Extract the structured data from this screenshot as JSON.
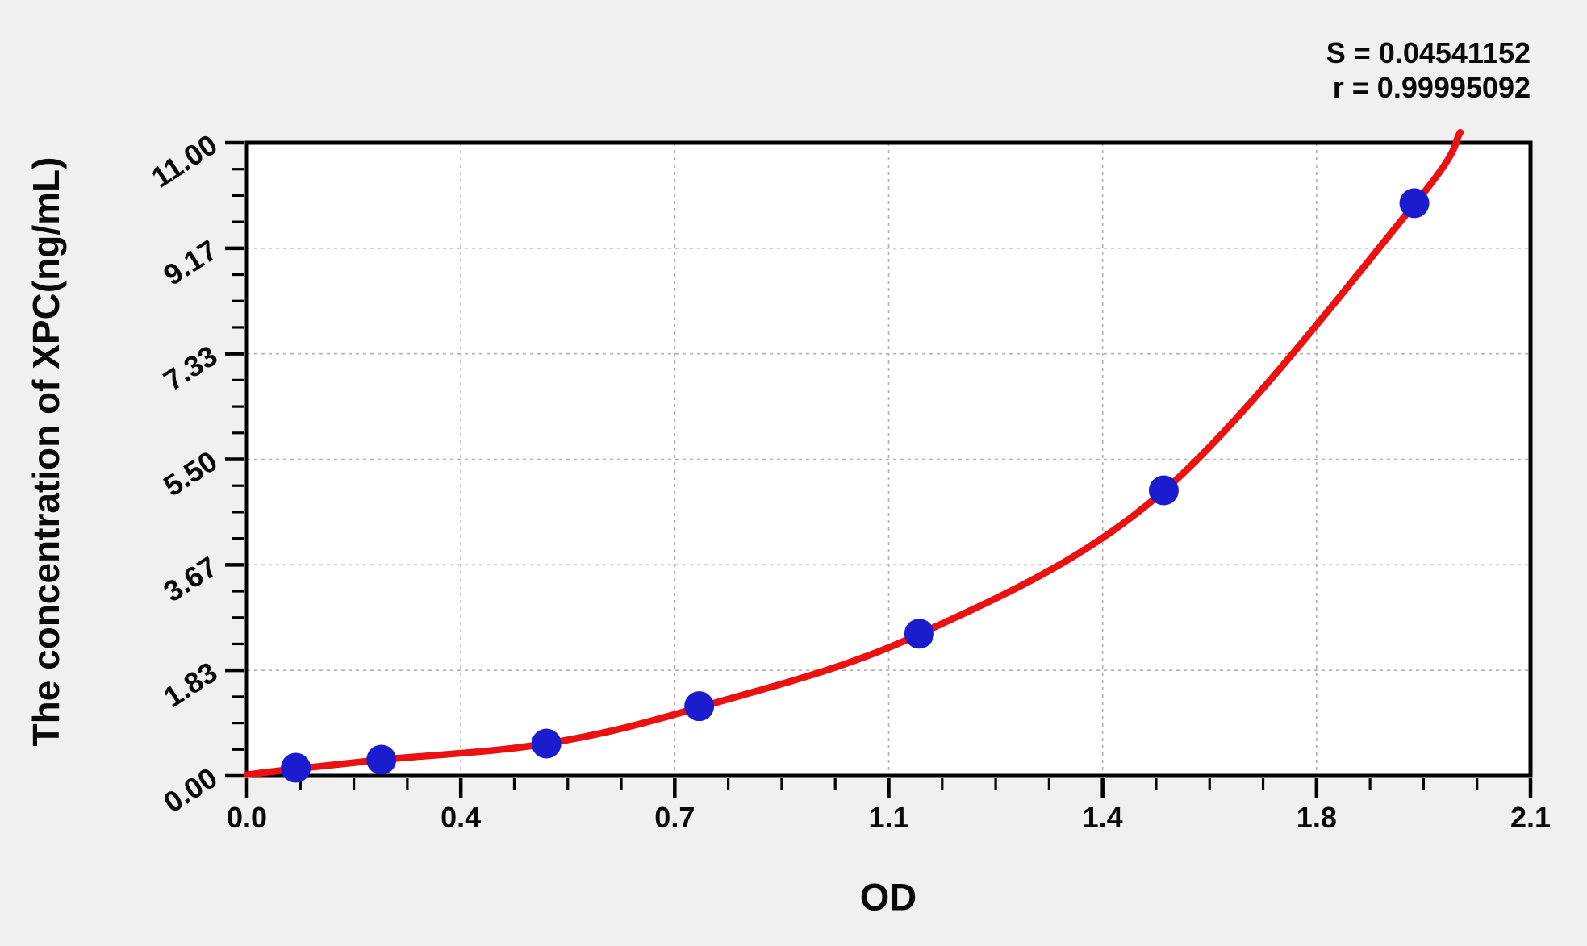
{
  "figure": {
    "kind": "ELISA standard curve plot",
    "background_color": "#f0f0f0",
    "plot_background_color": "#ffffff",
    "frame_color": "#000000"
  },
  "chart_data": {
    "type": "scatter",
    "title": "",
    "xlabel": "OD",
    "ylabel": "The concentration of XPC(ng/mL)",
    "xlim": [
      0,
      2.1
    ],
    "ylim": [
      0,
      11
    ],
    "grid": "dashed gridlines at major ticks",
    "legend": "none",
    "annotations": [
      {
        "text": "S = 0.04541152"
      },
      {
        "text": "r = 0.99995092"
      }
    ],
    "x_ticks": {
      "values": [
        0,
        0.35,
        0.7,
        1.05,
        1.4,
        1.75,
        2.1
      ],
      "labels": [
        "0.0",
        "0.4",
        "0.7",
        "1.1",
        "1.4",
        "1.8",
        "2.1"
      ],
      "minor_per_interval": 3
    },
    "y_ticks": {
      "values": [
        0,
        1.8333,
        3.6667,
        5.5,
        7.3333,
        9.1667,
        11
      ],
      "labels": [
        "0.00",
        "1.83",
        "3.67",
        "5.50",
        "7.33",
        "9.17",
        "11.00"
      ],
      "minor_per_interval": 3
    },
    "series": [
      {
        "name": "standard-points",
        "type": "scatter",
        "marker": "circle",
        "color": "#1c1ccf",
        "points": [
          [
            0.08,
            0.14
          ],
          [
            0.22,
            0.28
          ],
          [
            0.49,
            0.56
          ],
          [
            0.74,
            1.21
          ],
          [
            1.1,
            2.47
          ],
          [
            1.5,
            4.96
          ],
          [
            1.91,
            9.95
          ]
        ]
      },
      {
        "name": "fitted-curve",
        "type": "line",
        "color": "#ec1111",
        "points": [
          [
            0.0,
            0.02
          ],
          [
            0.08,
            0.12
          ],
          [
            0.22,
            0.28
          ],
          [
            0.49,
            0.56
          ],
          [
            0.74,
            1.19
          ],
          [
            1.1,
            2.46
          ],
          [
            1.5,
            4.95
          ],
          [
            1.91,
            9.93
          ],
          [
            1.985,
            11.18
          ]
        ]
      }
    ]
  }
}
